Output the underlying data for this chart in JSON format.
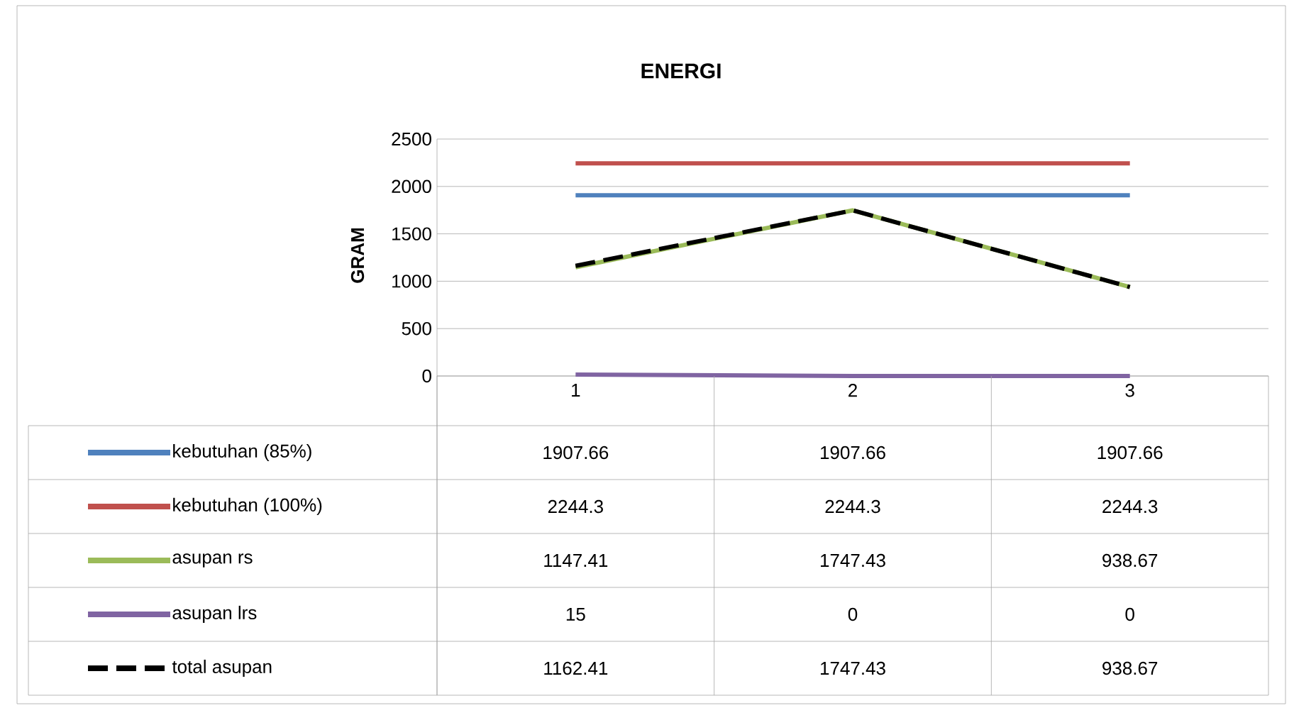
{
  "chart_data": {
    "type": "line",
    "title": "ENERGI",
    "ylabel": "GRAM",
    "categories": [
      "1",
      "2",
      "3"
    ],
    "series": [
      {
        "name": "kebutuhan (85%)",
        "color": "#4f81bd",
        "values": [
          1907.66,
          1907.66,
          1907.66
        ]
      },
      {
        "name": "kebutuhan (100%)",
        "color": "#c0504d",
        "values": [
          2244.3,
          2244.3,
          2244.3
        ]
      },
      {
        "name": "asupan rs",
        "color": "#9bbb59",
        "values": [
          1147.41,
          1747.43,
          938.67
        ]
      },
      {
        "name": "asupan lrs",
        "color": "#8064a2",
        "values": [
          15,
          0,
          0
        ]
      },
      {
        "name": "total asupan",
        "color": "#000000",
        "line_style": "dashed",
        "values": [
          1162.41,
          1747.43,
          938.67
        ]
      }
    ],
    "ylim": [
      0,
      2500
    ],
    "yticks": [
      0,
      500,
      1000,
      1500,
      2000,
      2500
    ],
    "grid": "y",
    "legend": "bottom",
    "data_labels": true,
    "marker": "none"
  }
}
